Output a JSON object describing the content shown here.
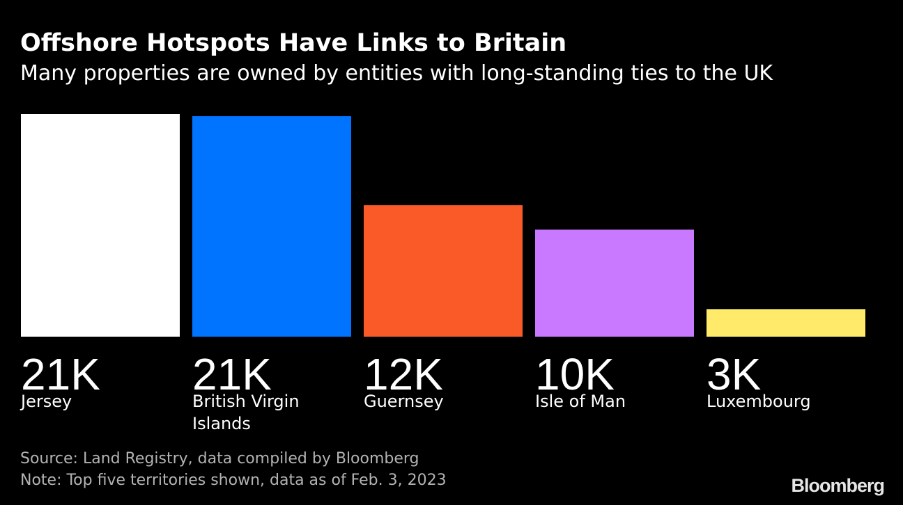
{
  "header": {
    "title": "Offshore Hotspots Have Links to Britain",
    "subtitle": "Many properties are owned by entities with long-standing ties to the UK"
  },
  "chart_data": {
    "type": "bar",
    "title": "Offshore Hotspots Have Links to Britain",
    "subtitle": "Many properties are owned by entities with long-standing ties to the UK",
    "xlabel": "",
    "ylabel": "",
    "categories": [
      "Jersey",
      "British Virgin Islands",
      "Guernsey",
      "Isle of Man",
      "Luxembourg"
    ],
    "values": [
      21000,
      20800,
      12400,
      10100,
      2600
    ],
    "value_labels": [
      "21K",
      "21K",
      "12K",
      "10K",
      "3K"
    ],
    "colors": [
      "#ffffff",
      "#0073ff",
      "#fa5a28",
      "#c979ff",
      "#ffeb69"
    ],
    "ylim": [
      0,
      21000
    ],
    "grid": false,
    "legend": "none"
  },
  "footer": {
    "source": "Source: Land Registry, data compiled by Bloomberg",
    "note": "Note: Top five territories shown, data as of Feb. 3, 2023"
  },
  "brand": "Bloomberg"
}
